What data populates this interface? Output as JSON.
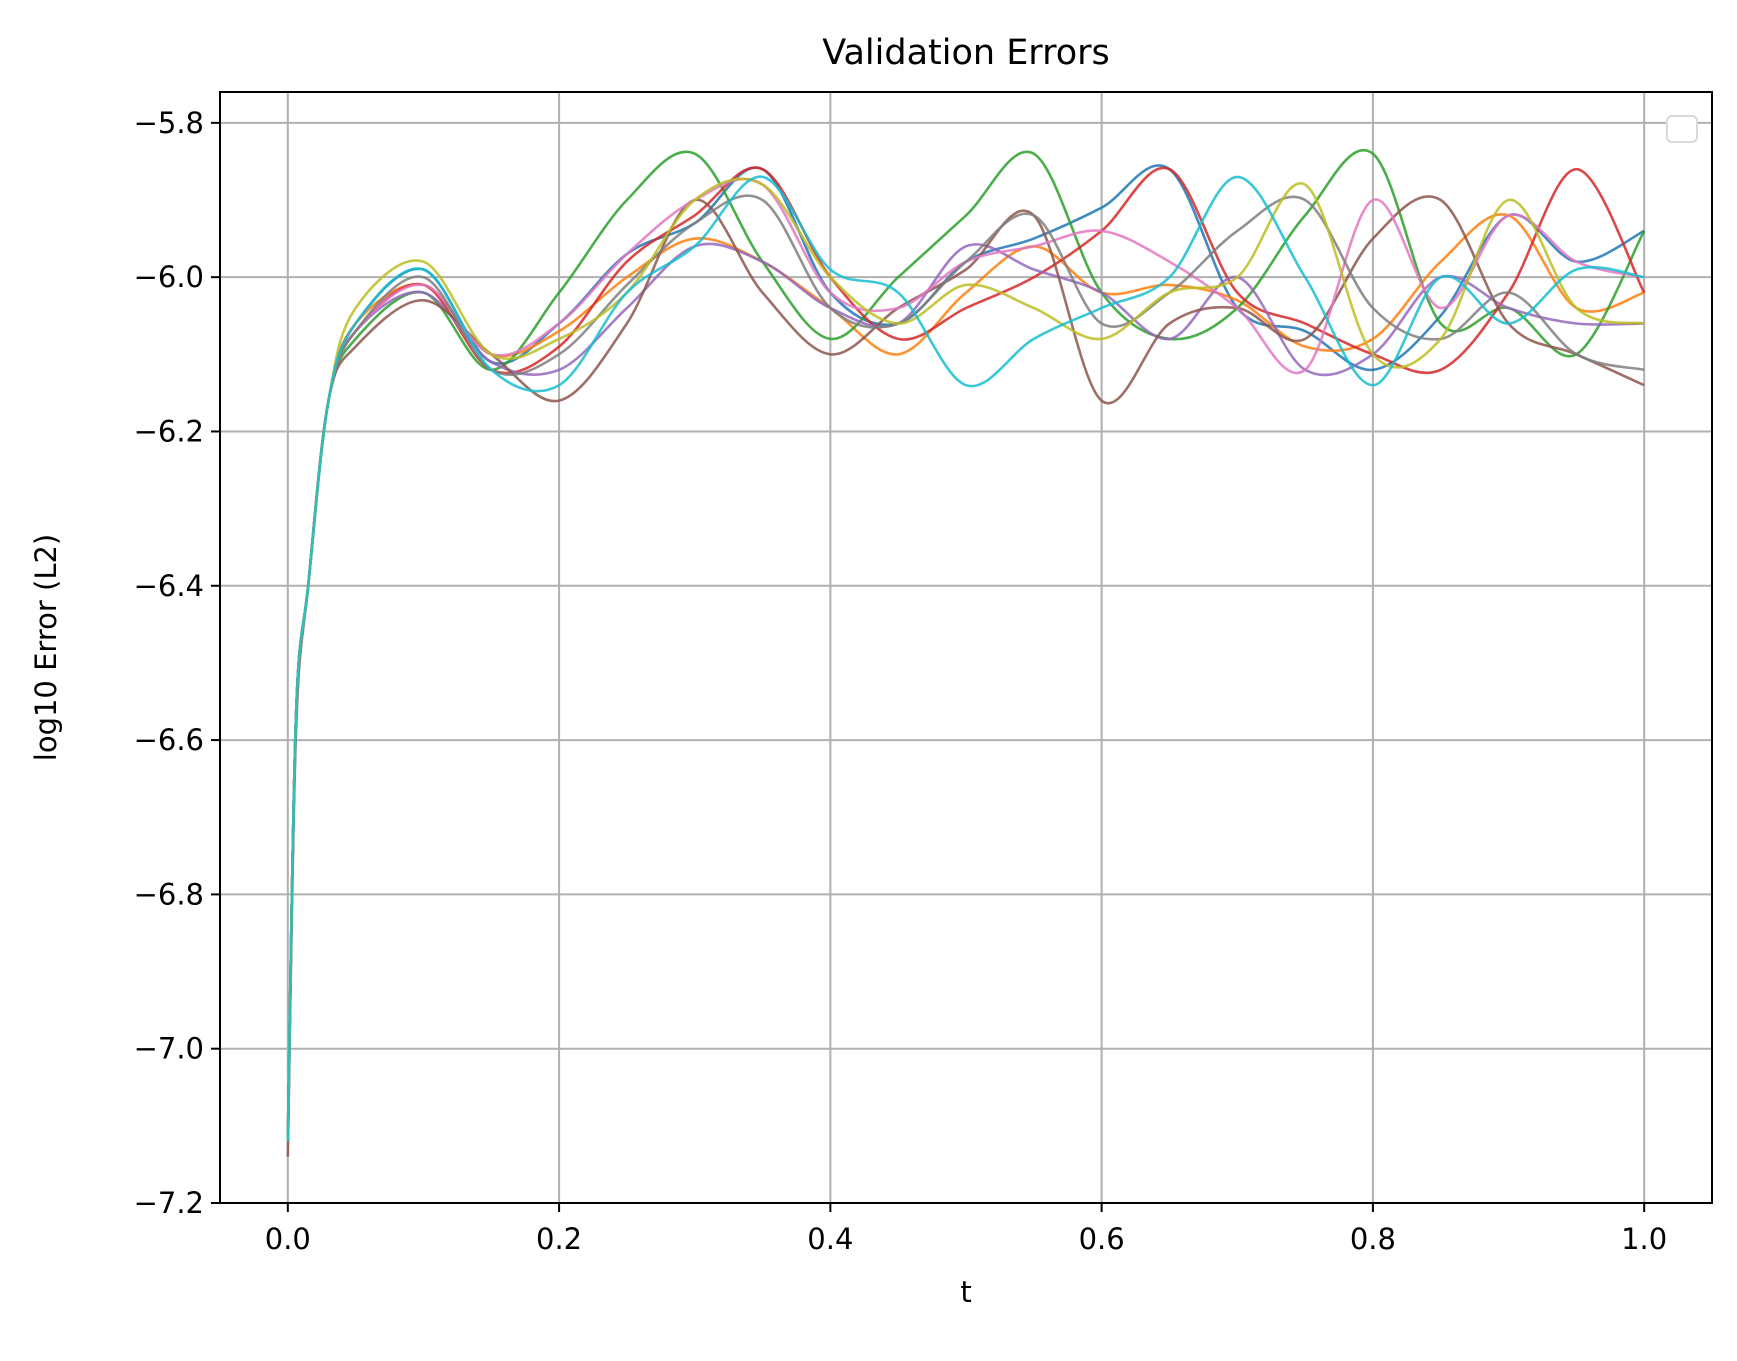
{
  "chart_data": {
    "type": "line",
    "title": "Validation Errors",
    "xlabel": "t",
    "ylabel": "log10 Error (L2)",
    "xlim": [
      -0.05,
      1.05
    ],
    "ylim": [
      -7.2,
      -5.76
    ],
    "xticks": [
      0.0,
      0.2,
      0.4,
      0.6,
      0.8,
      1.0
    ],
    "xtick_labels": [
      "0.0",
      "0.2",
      "0.4",
      "0.6",
      "0.8",
      "1.0"
    ],
    "yticks": [
      -7.2,
      -7.0,
      -6.8,
      -6.6,
      -6.4,
      -6.2,
      -6.0,
      -5.8
    ],
    "ytick_labels": [
      "−7.2",
      "−7.0",
      "−6.8",
      "−6.6",
      "−6.4",
      "−6.2",
      "−6.0",
      "−5.8"
    ],
    "grid": true,
    "legend": {
      "placement": "top-right",
      "entries": []
    },
    "x": [
      0.0,
      0.05,
      0.1,
      0.15,
      0.2,
      0.25,
      0.3,
      0.35,
      0.4,
      0.45,
      0.5,
      0.55,
      0.6,
      0.65,
      0.7,
      0.75,
      0.8,
      0.85,
      0.9,
      0.95,
      1.0
    ],
    "series": [
      {
        "color": "#1f77b4",
        "values": [
          -7.12,
          -6.06,
          -5.99,
          -6.11,
          -6.06,
          -5.97,
          -5.93,
          -5.86,
          -6.02,
          -6.06,
          -5.98,
          -5.95,
          -5.91,
          -5.86,
          -6.04,
          -6.07,
          -6.12,
          -6.05,
          -5.92,
          -5.98,
          -5.94
        ]
      },
      {
        "color": "#ff7f0e",
        "values": [
          -7.12,
          -6.06,
          -6.01,
          -6.1,
          -6.07,
          -6.0,
          -5.95,
          -5.98,
          -6.04,
          -6.1,
          -6.02,
          -5.96,
          -6.02,
          -6.01,
          -6.03,
          -6.09,
          -6.08,
          -5.98,
          -5.92,
          -6.04,
          -6.02
        ]
      },
      {
        "color": "#2ca02c",
        "values": [
          -7.12,
          -6.08,
          -6.02,
          -6.12,
          -6.02,
          -5.9,
          -5.84,
          -5.98,
          -6.08,
          -6.0,
          -5.92,
          -5.84,
          -6.02,
          -6.08,
          -6.04,
          -5.92,
          -5.84,
          -6.06,
          -6.04,
          -6.1,
          -5.94
        ]
      },
      {
        "color": "#d62728",
        "values": [
          -7.12,
          -6.07,
          -6.01,
          -6.12,
          -6.09,
          -5.98,
          -5.92,
          -5.86,
          -6.0,
          -6.08,
          -6.04,
          -6.0,
          -5.94,
          -5.86,
          -6.02,
          -6.06,
          -6.1,
          -6.12,
          -6.02,
          -5.86,
          -6.02
        ]
      },
      {
        "color": "#9467bd",
        "values": [
          -7.12,
          -6.07,
          -6.02,
          -6.11,
          -6.12,
          -6.04,
          -5.96,
          -5.98,
          -6.04,
          -6.06,
          -5.96,
          -5.99,
          -6.02,
          -6.08,
          -6.0,
          -6.12,
          -6.1,
          -6.0,
          -6.04,
          -6.06,
          -6.06
        ]
      },
      {
        "color": "#8c564b",
        "values": [
          -7.14,
          -6.09,
          -6.03,
          -6.1,
          -6.16,
          -6.06,
          -5.9,
          -6.02,
          -6.1,
          -6.04,
          -5.99,
          -5.92,
          -6.16,
          -6.06,
          -6.04,
          -6.08,
          -5.95,
          -5.9,
          -6.06,
          -6.1,
          -6.14
        ]
      },
      {
        "color": "#e377c2",
        "values": [
          -7.12,
          -6.07,
          -6.01,
          -6.1,
          -6.06,
          -5.97,
          -5.9,
          -5.88,
          -6.02,
          -6.04,
          -5.98,
          -5.96,
          -5.94,
          -5.98,
          -6.04,
          -6.12,
          -5.9,
          -6.04,
          -5.92,
          -5.98,
          -6.0
        ]
      },
      {
        "color": "#7f7f7f",
        "values": [
          -7.12,
          -6.07,
          -6.0,
          -6.12,
          -6.1,
          -6.01,
          -5.93,
          -5.9,
          -6.04,
          -6.06,
          -5.98,
          -5.92,
          -6.06,
          -6.02,
          -5.94,
          -5.9,
          -6.04,
          -6.08,
          -6.02,
          -6.1,
          -6.12
        ]
      },
      {
        "color": "#bcbd22",
        "values": [
          -7.12,
          -6.04,
          -5.98,
          -6.1,
          -6.08,
          -6.02,
          -5.9,
          -5.88,
          -6.0,
          -6.06,
          -6.01,
          -6.04,
          -6.08,
          -6.02,
          -6.0,
          -5.88,
          -6.1,
          -6.08,
          -5.9,
          -6.04,
          -6.06
        ]
      },
      {
        "color": "#17becf",
        "values": [
          -7.12,
          -6.06,
          -5.99,
          -6.12,
          -6.14,
          -6.02,
          -5.96,
          -5.87,
          -5.99,
          -6.02,
          -6.14,
          -6.08,
          -6.04,
          -6.0,
          -5.87,
          -6.0,
          -6.14,
          -6.0,
          -6.06,
          -5.99,
          -6.0
        ]
      }
    ]
  }
}
